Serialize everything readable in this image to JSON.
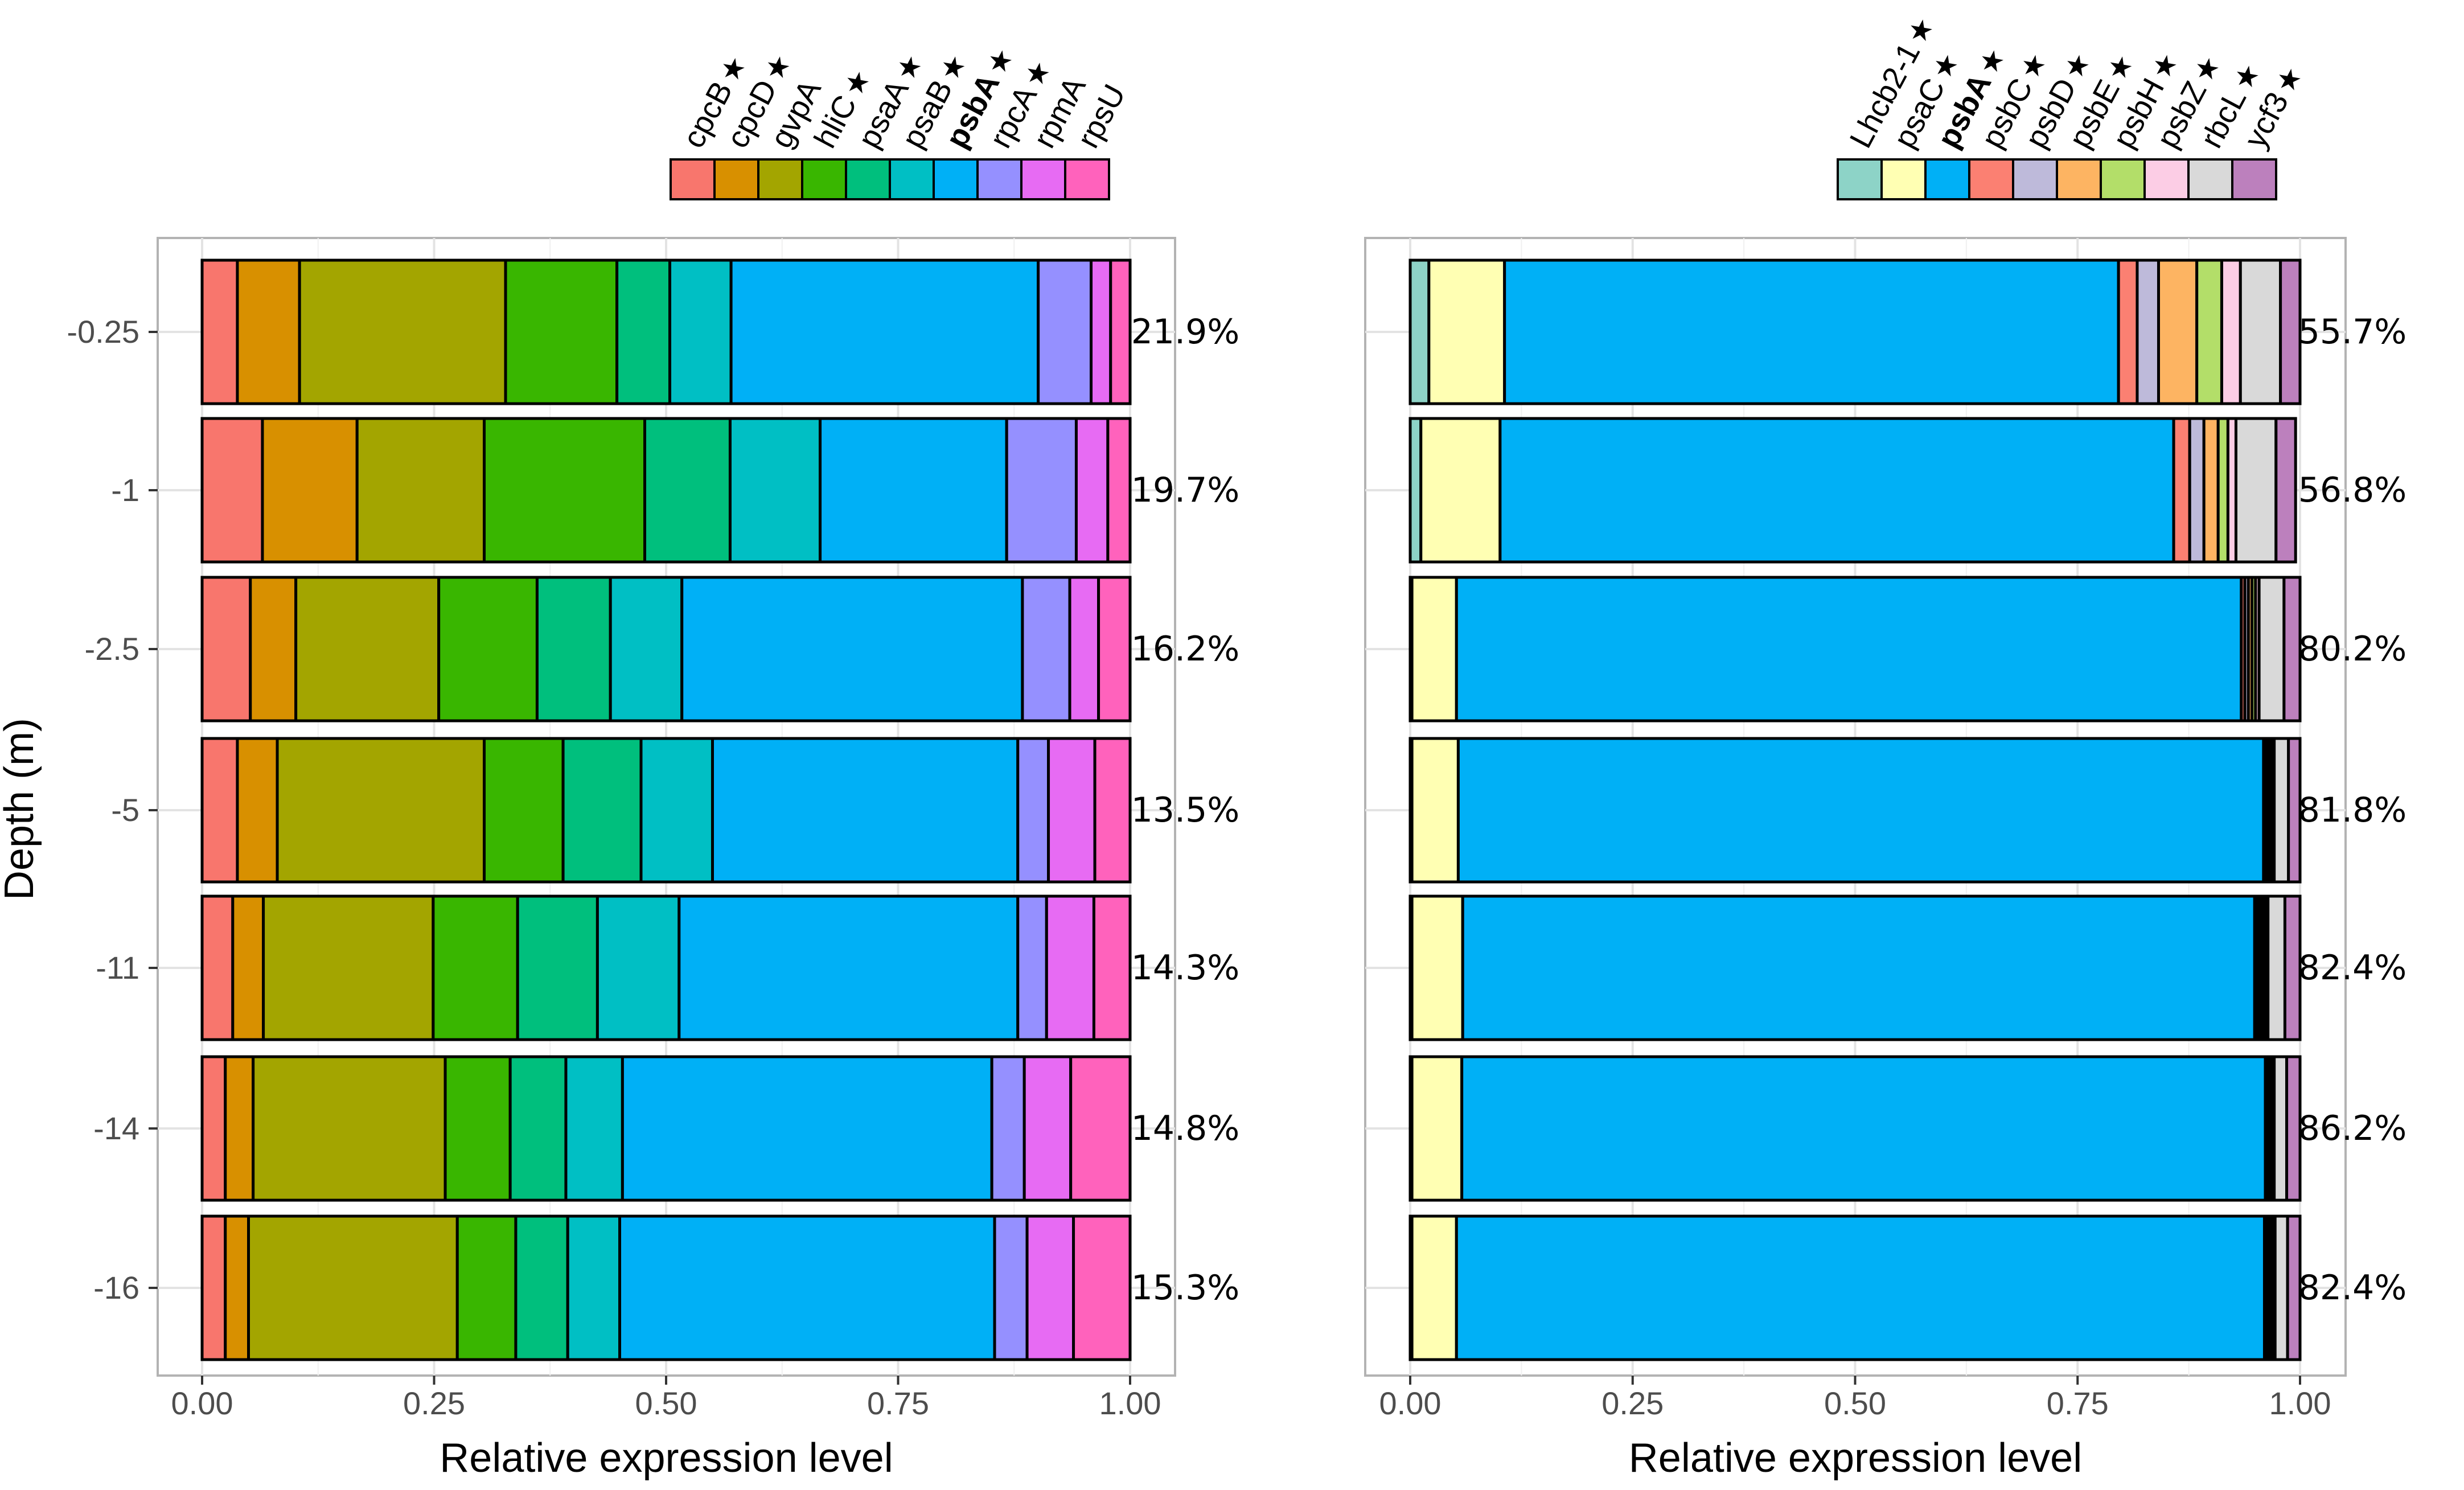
{
  "chart_data": [
    {
      "type": "bar",
      "orientation": "horizontal",
      "stacked": true,
      "panel": "left",
      "xlabel": "Relative expression level",
      "ylabel": "Depth (m)",
      "xlim": [
        0,
        1
      ],
      "xticks": [
        "0.00",
        "0.25",
        "0.50",
        "0.75",
        "1.00"
      ],
      "tickValues": [
        0,
        0.25,
        0.5,
        0.75,
        1.0
      ],
      "grid": true,
      "legend_position": "top",
      "categories": [
        "-0.25",
        "-1",
        "-2.5",
        "-5",
        "-11",
        "-14",
        "-16"
      ],
      "percent_labels": [
        "21.9%",
        "19.7%",
        "16.2%",
        "13.5%",
        "14.3%",
        "14.8%",
        "15.3%"
      ],
      "series": [
        {
          "name": "cpcB",
          "starred": true,
          "bold": false,
          "color": "#F8766D",
          "values": [
            0.038,
            0.065,
            0.052,
            0.038,
            0.033,
            0.025,
            0.025
          ]
        },
        {
          "name": "cpcD",
          "starred": true,
          "bold": false,
          "color": "#D89000",
          "values": [
            0.067,
            0.102,
            0.049,
            0.043,
            0.033,
            0.03,
            0.025
          ]
        },
        {
          "name": "gvpA",
          "starred": false,
          "bold": false,
          "color": "#A3A500",
          "values": [
            0.222,
            0.137,
            0.154,
            0.223,
            0.183,
            0.207,
            0.225
          ]
        },
        {
          "name": "hliC",
          "starred": true,
          "bold": false,
          "color": "#39B600",
          "values": [
            0.12,
            0.173,
            0.106,
            0.085,
            0.091,
            0.07,
            0.063
          ]
        },
        {
          "name": "psaA",
          "starred": true,
          "bold": false,
          "color": "#00BF7D",
          "values": [
            0.057,
            0.092,
            0.079,
            0.084,
            0.086,
            0.06,
            0.056
          ]
        },
        {
          "name": "psaB",
          "starred": true,
          "bold": false,
          "color": "#00BFC4",
          "values": [
            0.066,
            0.097,
            0.077,
            0.077,
            0.088,
            0.061,
            0.056
          ]
        },
        {
          "name": "psbA",
          "starred": true,
          "bold": true,
          "color": "#00B0F6",
          "values": [
            0.331,
            0.201,
            0.367,
            0.329,
            0.365,
            0.398,
            0.404
          ]
        },
        {
          "name": "rpcA",
          "starred": true,
          "bold": false,
          "color": "#9590FF",
          "values": [
            0.057,
            0.075,
            0.051,
            0.033,
            0.031,
            0.035,
            0.035
          ]
        },
        {
          "name": "rpmA",
          "starred": false,
          "bold": false,
          "color": "#E76BF3",
          "values": [
            0.021,
            0.034,
            0.031,
            0.05,
            0.051,
            0.05,
            0.05
          ]
        },
        {
          "name": "rpsU",
          "starred": false,
          "bold": false,
          "color": "#FF62BC",
          "values": [
            0.021,
            0.024,
            0.034,
            0.038,
            0.039,
            0.064,
            0.061
          ]
        }
      ]
    },
    {
      "type": "bar",
      "orientation": "horizontal",
      "stacked": true,
      "panel": "right",
      "xlabel": "Relative expression level",
      "ylabel": "",
      "xlim": [
        0,
        1
      ],
      "xticks": [
        "0.00",
        "0.25",
        "0.50",
        "0.75",
        "1.00"
      ],
      "tickValues": [
        0,
        0.25,
        0.5,
        0.75,
        1.0
      ],
      "grid": true,
      "legend_position": "top",
      "categories": [
        "-0.25",
        "-1",
        "-2.5",
        "-5",
        "-11",
        "-14",
        "-16"
      ],
      "percent_labels": [
        "55.7%",
        "56.8%",
        "80.2%",
        "81.8%",
        "82.4%",
        "86.2%",
        "82.4%"
      ],
      "series": [
        {
          "name": "Lhcb2-1",
          "starred": true,
          "bold": false,
          "color": "#8DD3C7",
          "values": [
            0.021,
            0.012,
            0.002,
            0.002,
            0.002,
            0.002,
            0.002
          ]
        },
        {
          "name": "psaC",
          "starred": true,
          "bold": false,
          "color": "#FFFFB3",
          "values": [
            0.085,
            0.089,
            0.05,
            0.052,
            0.057,
            0.056,
            0.05
          ]
        },
        {
          "name": "psbA",
          "starred": true,
          "bold": true,
          "color": "#00B0F6",
          "values": [
            0.69,
            0.757,
            0.882,
            0.905,
            0.89,
            0.903,
            0.908
          ]
        },
        {
          "name": "psbC",
          "starred": true,
          "bold": false,
          "color": "#FB8072",
          "values": [
            0.021,
            0.018,
            0.004,
            0.003,
            0.003,
            0.002,
            0.003
          ]
        },
        {
          "name": "psbD",
          "starred": true,
          "bold": false,
          "color": "#BEBADA",
          "values": [
            0.024,
            0.016,
            0.004,
            0.003,
            0.003,
            0.002,
            0.003
          ]
        },
        {
          "name": "psbE",
          "starred": true,
          "bold": false,
          "color": "#FDB462",
          "values": [
            0.043,
            0.016,
            0.004,
            0.002,
            0.003,
            0.002,
            0.002
          ]
        },
        {
          "name": "psbH",
          "starred": true,
          "bold": false,
          "color": "#B3DE69",
          "values": [
            0.028,
            0.011,
            0.004,
            0.002,
            0.003,
            0.002,
            0.002
          ]
        },
        {
          "name": "psbZ",
          "starred": true,
          "bold": false,
          "color": "#FCCDE5",
          "values": [
            0.021,
            0.009,
            0.004,
            0.002,
            0.003,
            0.002,
            0.002
          ]
        },
        {
          "name": "rbcL",
          "starred": true,
          "bold": false,
          "color": "#D9D9D9",
          "values": [
            0.045,
            0.045,
            0.028,
            0.016,
            0.019,
            0.014,
            0.014
          ]
        },
        {
          "name": "ycf3",
          "starred": true,
          "bold": false,
          "color": "#BC80BD",
          "values": [
            0.022,
            0.022,
            0.018,
            0.013,
            0.017,
            0.015,
            0.014
          ]
        }
      ]
    }
  ]
}
